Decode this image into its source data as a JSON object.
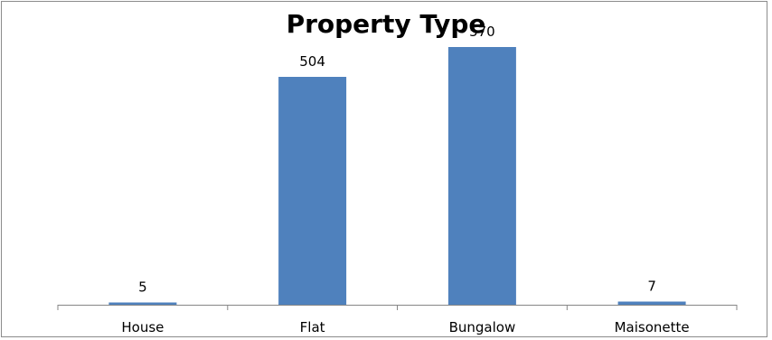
{
  "chart_data": {
    "type": "bar",
    "title": "Property Type",
    "categories": [
      "House",
      "Flat",
      "Bungalow",
      "Maisonette"
    ],
    "values": [
      5,
      504,
      570,
      7
    ],
    "data_labels": [
      "5",
      "504",
      "570",
      "7"
    ],
    "xlabel": "",
    "ylabel": "",
    "ylim": [
      0,
      600
    ],
    "grid": false,
    "legend": "none",
    "bar_color": "#4f81bd",
    "axis_color": "#868686"
  }
}
